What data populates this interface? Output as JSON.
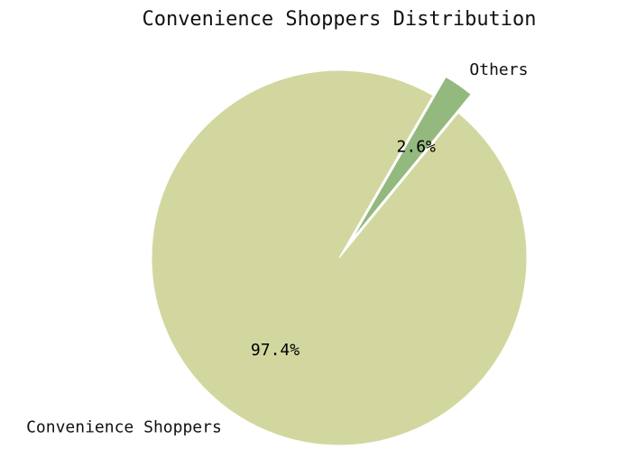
{
  "chart_data": {
    "type": "pie",
    "title": "Convenience Shoppers Distribution",
    "categories": [
      "Convenience Shoppers",
      "Others"
    ],
    "values": [
      97.4,
      2.6
    ],
    "value_labels": [
      "97.4%",
      "2.6%"
    ],
    "colors": [
      "#d2d79f",
      "#93b97e"
    ],
    "exploded": [
      false,
      true
    ],
    "start_angle_deg": 60,
    "direction": "counterclockwise",
    "legend": "none"
  }
}
